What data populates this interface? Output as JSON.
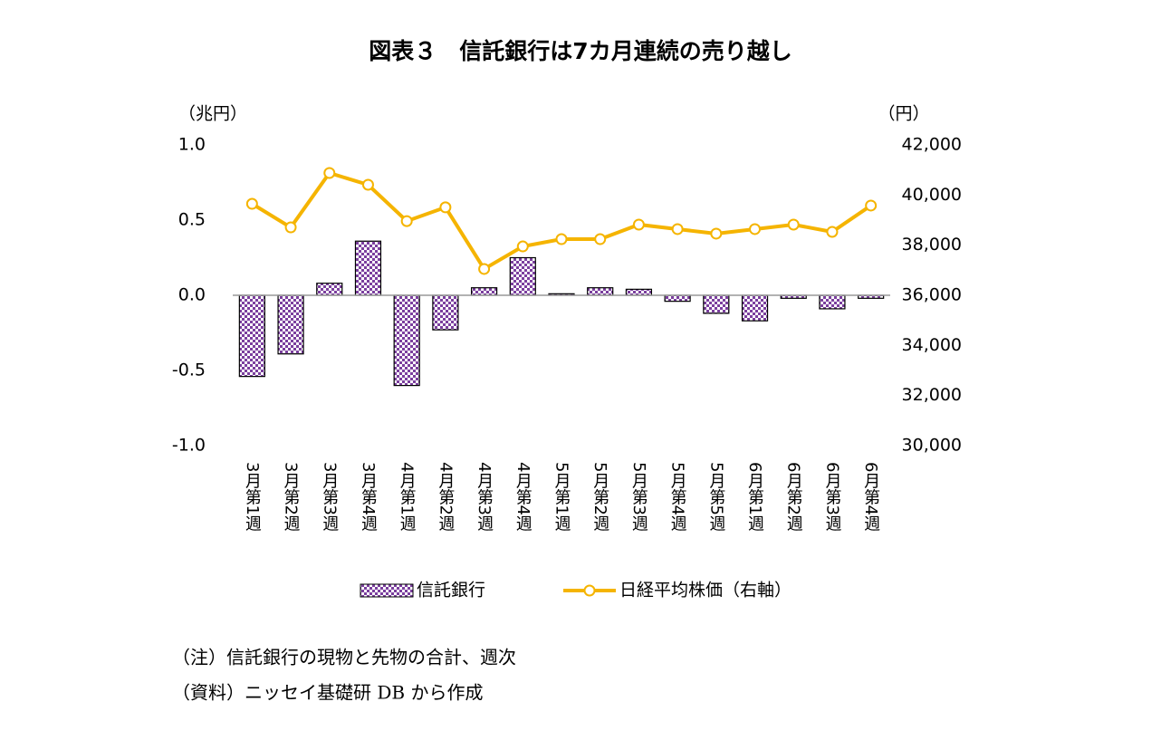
{
  "chart_data": {
    "type": "bar",
    "title": "図表３　信託銀行は7カ月連続の売り越し",
    "y_label": "（兆円）",
    "y2_label": "（円）",
    "categories": [
      "3月第1週",
      "3月第2週",
      "3月第3週",
      "3月第4週",
      "4月第1週",
      "4月第2週",
      "4月第3週",
      "4月第4週",
      "5月第1週",
      "5月第2週",
      "5月第3週",
      "5月第4週",
      "5月第5週",
      "6月第1週",
      "6月第2週",
      "6月第3週",
      "6月第4週"
    ],
    "series": [
      {
        "name": "信託銀行",
        "type": "bar",
        "color": "#7b3f9e",
        "values": [
          -0.54,
          -0.39,
          0.08,
          0.36,
          -0.6,
          -0.23,
          0.05,
          0.25,
          0.01,
          0.05,
          0.04,
          -0.04,
          -0.12,
          -0.17,
          -0.02,
          -0.09,
          -0.02
        ]
      },
      {
        "name": "日経平均株価（右軸）",
        "type": "line",
        "axis": "y2",
        "color": "#f5b400",
        "values": [
          39650,
          38710,
          40880,
          40410,
          38960,
          39510,
          37050,
          37950,
          38240,
          38240,
          38820,
          38640,
          38460,
          38640,
          38820,
          38530,
          39580
        ]
      }
    ],
    "ylim": [
      -1,
      1
    ],
    "yticks": [
      {
        "value": -1,
        "label": "-1.0"
      },
      {
        "value": -0.5,
        "label": "-0.5"
      },
      {
        "value": 0,
        "label": "0.0"
      },
      {
        "value": 0.5,
        "label": "0.5"
      },
      {
        "value": 1,
        "label": "1.0"
      }
    ],
    "y2lim": [
      30000,
      42000
    ],
    "y2ticks": [
      {
        "value": 30000,
        "label": "30,000"
      },
      {
        "value": 32000,
        "label": "32,000"
      },
      {
        "value": 34000,
        "label": "34,000"
      },
      {
        "value": 36000,
        "label": "36,000"
      },
      {
        "value": 38000,
        "label": "38,000"
      },
      {
        "value": 40000,
        "label": "40,000"
      },
      {
        "value": 42000,
        "label": "42,000"
      }
    ],
    "notes": [
      "（注）信託銀行の現物と先物の合計、週次",
      "（資料）ニッセイ基礎研 DB から作成"
    ]
  }
}
